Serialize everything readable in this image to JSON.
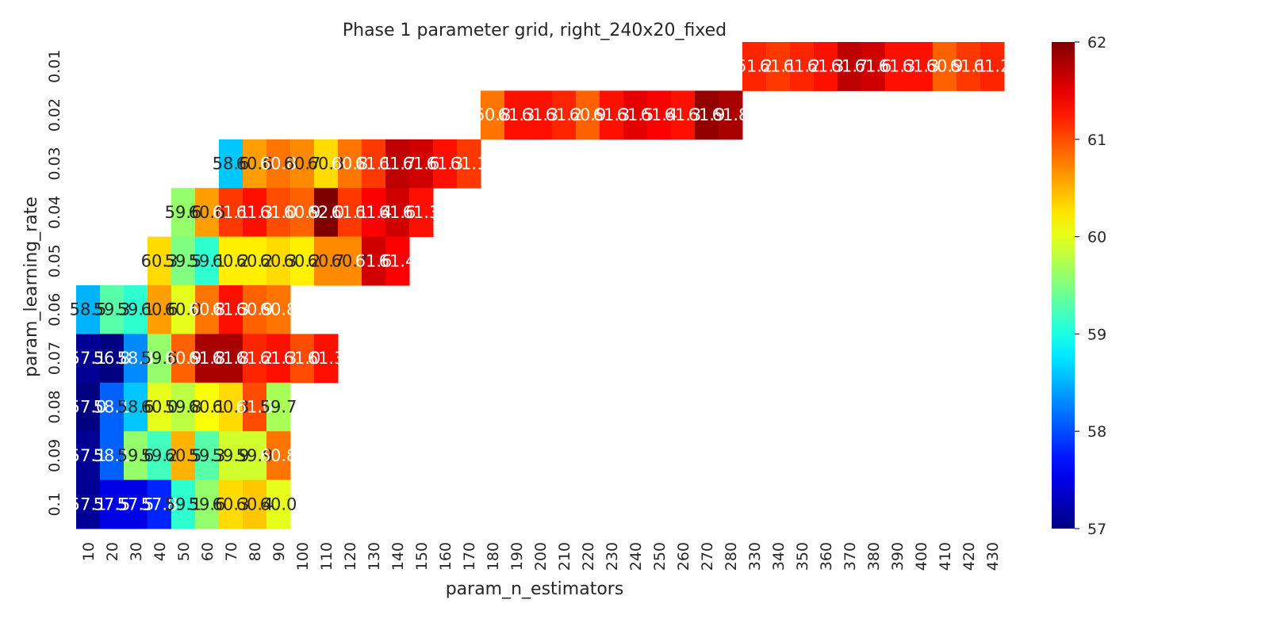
{
  "chart_data": {
    "type": "heatmap",
    "title": "Phase 1 parameter grid, right_240x20_fixed",
    "xlabel": "param_n_estimators",
    "ylabel": "param_learning_rate",
    "x": [
      "10",
      "20",
      "30",
      "40",
      "50",
      "60",
      "70",
      "80",
      "90",
      "100",
      "110",
      "120",
      "130",
      "140",
      "150",
      "160",
      "170",
      "180",
      "190",
      "200",
      "210",
      "220",
      "230",
      "240",
      "250",
      "260",
      "270",
      "280",
      "330",
      "340",
      "350",
      "360",
      "370",
      "380",
      "390",
      "400",
      "410",
      "420",
      "430"
    ],
    "y": [
      "0.01",
      "0.02",
      "0.03",
      "0.04",
      "0.05",
      "0.06",
      "0.07",
      "0.08",
      "0.09",
      "0.1"
    ],
    "values": [
      [
        null,
        null,
        null,
        null,
        null,
        null,
        null,
        null,
        null,
        null,
        null,
        null,
        null,
        null,
        null,
        null,
        null,
        null,
        null,
        null,
        null,
        null,
        null,
        null,
        null,
        null,
        null,
        null,
        61.2,
        61.1,
        61.2,
        61.3,
        61.7,
        61.6,
        61.3,
        61.3,
        60.9,
        61.1,
        61.2
      ],
      [
        null,
        null,
        null,
        null,
        null,
        null,
        null,
        null,
        null,
        null,
        null,
        null,
        null,
        null,
        null,
        null,
        null,
        60.8,
        61.3,
        61.3,
        61.2,
        60.9,
        61.3,
        61.5,
        61.4,
        61.3,
        61.9,
        61.8,
        null,
        null,
        null,
        null,
        null,
        null,
        null,
        null,
        null,
        null,
        null
      ],
      [
        null,
        null,
        null,
        null,
        null,
        null,
        58.6,
        60.6,
        60.8,
        60.7,
        60.3,
        60.8,
        61.1,
        61.7,
        61.6,
        61.3,
        61.1,
        null,
        null,
        null,
        null,
        null,
        null,
        null,
        null,
        null,
        null,
        null,
        null,
        null,
        null,
        null,
        null,
        null,
        null,
        null,
        null,
        null,
        null
      ],
      [
        null,
        null,
        null,
        null,
        59.6,
        60.6,
        61.1,
        61.3,
        61.0,
        60.9,
        62.0,
        61.1,
        61.4,
        61.6,
        61.3,
        null,
        null,
        null,
        null,
        null,
        null,
        null,
        null,
        null,
        null,
        null,
        null,
        null,
        null,
        null,
        null,
        null,
        null,
        null,
        null,
        null,
        null,
        null,
        null
      ],
      [
        null,
        null,
        null,
        60.3,
        59.5,
        59.1,
        60.2,
        60.2,
        60.3,
        60.2,
        60.7,
        60.7,
        61.6,
        61.4,
        null,
        null,
        null,
        null,
        null,
        null,
        null,
        null,
        null,
        null,
        null,
        null,
        null,
        null,
        null,
        null,
        null,
        null,
        null,
        null,
        null,
        null,
        null,
        null,
        null
      ],
      [
        58.5,
        59.3,
        59.1,
        60.6,
        60.0,
        60.8,
        61.3,
        60.9,
        60.8,
        null,
        null,
        null,
        null,
        null,
        null,
        null,
        null,
        null,
        null,
        null,
        null,
        null,
        null,
        null,
        null,
        null,
        null,
        null,
        null,
        null,
        null,
        null,
        null,
        null,
        null,
        null,
        null,
        null,
        null
      ],
      [
        57.1,
        56.8,
        58.3,
        59.6,
        60.9,
        61.8,
        61.8,
        61.2,
        61.3,
        61.0,
        61.3,
        null,
        null,
        null,
        null,
        null,
        null,
        null,
        null,
        null,
        null,
        null,
        null,
        null,
        null,
        null,
        null,
        null,
        null,
        null,
        null,
        null,
        null,
        null,
        null,
        null,
        null,
        null,
        null
      ],
      [
        57.0,
        58.1,
        58.6,
        60.0,
        59.8,
        60.1,
        60.3,
        61.0,
        59.7,
        null,
        null,
        null,
        null,
        null,
        null,
        null,
        null,
        null,
        null,
        null,
        null,
        null,
        null,
        null,
        null,
        null,
        null,
        null,
        null,
        null,
        null,
        null,
        null,
        null,
        null,
        null,
        null,
        null,
        null
      ],
      [
        57.1,
        58.1,
        59.6,
        59.2,
        60.5,
        59.3,
        59.9,
        59.9,
        60.8,
        null,
        null,
        null,
        null,
        null,
        null,
        null,
        null,
        null,
        null,
        null,
        null,
        null,
        null,
        null,
        null,
        null,
        null,
        null,
        null,
        null,
        null,
        null,
        null,
        null,
        null,
        null,
        null,
        null,
        null
      ],
      [
        57.1,
        57.5,
        57.5,
        57.8,
        59.1,
        59.6,
        60.3,
        60.4,
        60.0,
        null,
        null,
        null,
        null,
        null,
        null,
        null,
        null,
        null,
        null,
        null,
        null,
        null,
        null,
        null,
        null,
        null,
        null,
        null,
        null,
        null,
        null,
        null,
        null,
        null,
        null,
        null,
        null,
        null,
        null
      ]
    ],
    "colormap": "jet",
    "vmin": 57,
    "vmax": 62,
    "colorbar_ticks": [
      "57",
      "58",
      "59",
      "60",
      "61",
      "62"
    ]
  }
}
